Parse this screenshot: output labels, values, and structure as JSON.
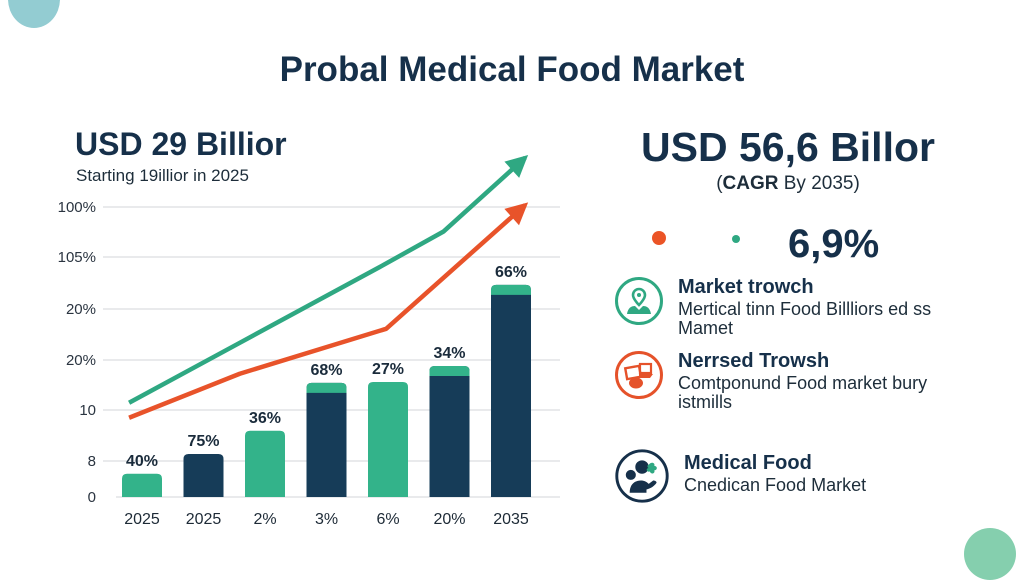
{
  "title": "Probal Medical Food Market",
  "left": {
    "headline": "USD 29 Billior",
    "subtitle_bold": "Starting",
    "subtitle_rest": " 19illior in 2025"
  },
  "right": {
    "headline": "USD 56,6 Billor",
    "sub_open": "(",
    "sub_bold": "CAGR",
    "sub_rest": " By 2035)",
    "cagr_value": "6,9%",
    "features": [
      {
        "icon": "location-person-icon",
        "title": "Market trowch",
        "desc": "Mertical tinn Food Billliors ed ss Mamet",
        "color": "#2fa882"
      },
      {
        "icon": "devices-icon",
        "title": "Nerrsed Trowsh",
        "desc": "Comtponund Food market bury istmills",
        "color": "#e5522a"
      },
      {
        "icon": "people-leaf-icon",
        "title": "Medical Food",
        "desc": "Cnedican Food Market",
        "color": "#16304a"
      }
    ]
  },
  "colors": {
    "navy": "#16304a",
    "bar_navy": "#163c58",
    "green": "#33b38a",
    "orange": "#e8532a",
    "line_green": "#2fa882",
    "grid": "#e2e4e6"
  },
  "chart_data": {
    "type": "bar",
    "title": "",
    "xlabel": "",
    "ylabel": "",
    "grid": true,
    "y_tick_labels": [
      "0",
      "8",
      "10",
      "20%",
      "20%",
      "105%",
      "100%"
    ],
    "y_index_range": [
      0,
      6
    ],
    "categories": [
      "2025",
      "2025",
      "2%",
      "3%",
      "6%",
      "20%",
      "2035"
    ],
    "bars": [
      {
        "label": "40%",
        "value": 0.48,
        "color": "green",
        "cap": false
      },
      {
        "label": "75%",
        "value": 0.89,
        "color": "navy",
        "cap": false
      },
      {
        "label": "36%",
        "value": 1.37,
        "color": "green",
        "cap": false
      },
      {
        "label": "68%",
        "value": 2.36,
        "color": "navy",
        "cap": true
      },
      {
        "label": "27%",
        "value": 2.38,
        "color": "green",
        "cap": false
      },
      {
        "label": "34%",
        "value": 2.71,
        "color": "navy",
        "cap": true
      },
      {
        "label": "66%",
        "value": 4.39,
        "color": "navy",
        "cap": true
      }
    ],
    "series": [
      {
        "name": "green-trend",
        "type": "line",
        "color": "green-line",
        "arrow": true,
        "points": [
          [
            -0.21,
            1.95
          ],
          [
            1.59,
            3.19
          ],
          [
            3.84,
            4.74
          ],
          [
            4.9,
            5.49
          ],
          [
            6.23,
            7.02
          ]
        ]
      },
      {
        "name": "orange-trend",
        "type": "line",
        "color": "orange",
        "arrow": true,
        "points": [
          [
            -0.21,
            1.64
          ],
          [
            1.59,
            2.55
          ],
          [
            3.97,
            3.48
          ],
          [
            6.23,
            6.04
          ]
        ]
      }
    ]
  }
}
